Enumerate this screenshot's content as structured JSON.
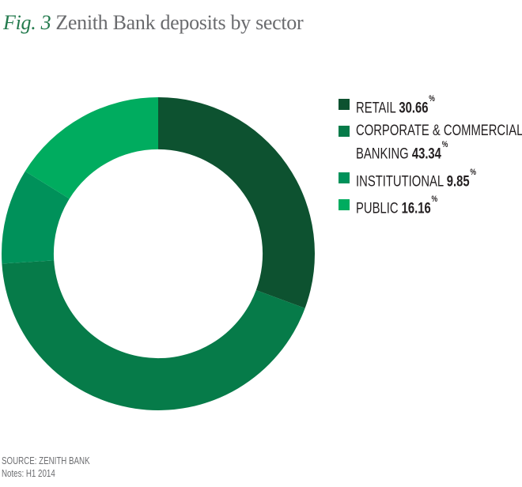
{
  "title": {
    "fig": "Fig. 3",
    "text": "Zenith Bank deposits by sector"
  },
  "legend": {
    "items": [
      {
        "label": "RETAIL",
        "value": "30.66",
        "suffix": "%"
      },
      {
        "label_line1": "CORPORATE & COMMERCIAL",
        "label_line2": "BANKING",
        "value": "43.34",
        "suffix": "%"
      },
      {
        "label": "INSTITUTIONAL",
        "value": "9.85",
        "suffix": "%"
      },
      {
        "label": "PUBLIC",
        "value": "16.16",
        "suffix": "%"
      }
    ]
  },
  "footer": {
    "source": "SOURCE: ZENITH BANK",
    "notes": "Notes: H1 2014"
  },
  "chart_data": {
    "type": "pie",
    "subtype": "donut",
    "title": "Zenith Bank deposits by sector",
    "categories": [
      "RETAIL",
      "CORPORATE & COMMERCIAL BANKING",
      "INSTITUTIONAL",
      "PUBLIC"
    ],
    "values": [
      30.66,
      43.34,
      9.85,
      16.16
    ],
    "unit": "%",
    "colors": [
      "#0D5230",
      "#067B49",
      "#00915A",
      "#00AC5F"
    ],
    "start_angle_deg": 0,
    "direction": "clockwise",
    "inner_radius_ratio": 0.667,
    "legend_position": "right",
    "labels_on_chart": false
  }
}
